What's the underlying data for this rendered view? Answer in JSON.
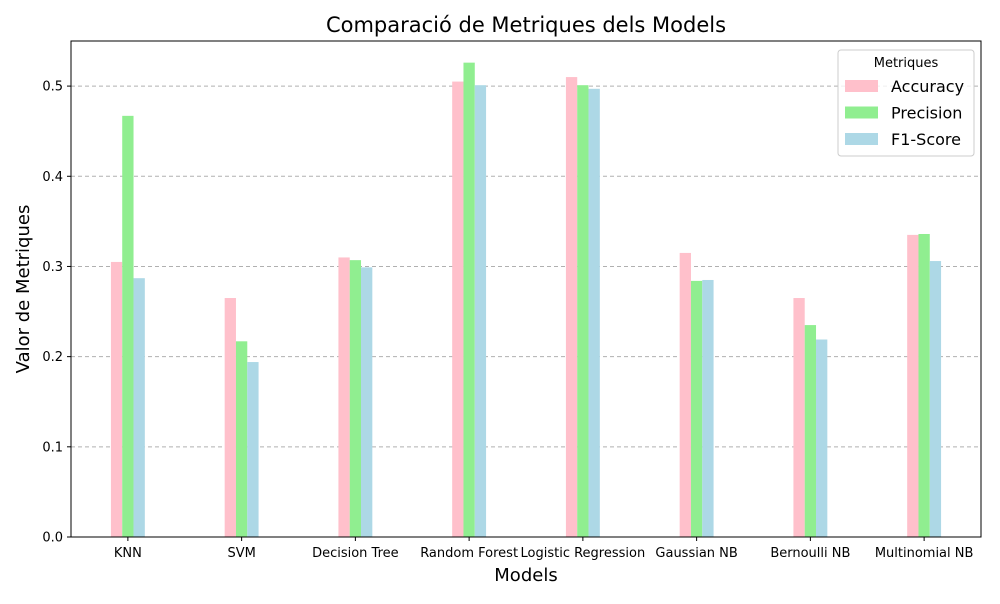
{
  "chart_data": {
    "type": "bar",
    "title": "Comparació de Metriques dels Models",
    "xlabel": "Models",
    "ylabel": "Valor de Metriques",
    "ylim": [
      0,
      0.55
    ],
    "yticks": [
      "0.0",
      "0.1",
      "0.2",
      "0.3",
      "0.4",
      "0.5"
    ],
    "grid": "horizontal-dashed",
    "legend": {
      "title": "Metriques",
      "placement": "top-right"
    },
    "categories": [
      "KNN",
      "SVM",
      "Decision Tree",
      "Random Forest",
      "Logistic Regression",
      "Gaussian NB",
      "Bernoulli NB",
      "Multinomial NB"
    ],
    "series": [
      {
        "name": "Accuracy",
        "color": "#ffc0cb",
        "values": [
          0.305,
          0.265,
          0.31,
          0.505,
          0.51,
          0.315,
          0.265,
          0.335
        ]
      },
      {
        "name": "Precision",
        "color": "#90ee90",
        "values": [
          0.467,
          0.217,
          0.307,
          0.526,
          0.501,
          0.284,
          0.235,
          0.336
        ]
      },
      {
        "name": "F1-Score",
        "color": "#add8e6",
        "values": [
          0.287,
          0.194,
          0.299,
          0.501,
          0.497,
          0.285,
          0.219,
          0.306
        ]
      }
    ]
  }
}
